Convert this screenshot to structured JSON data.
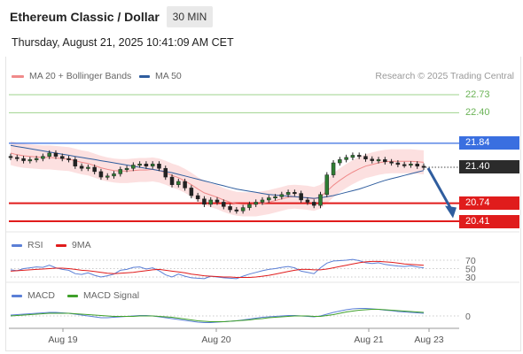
{
  "header": {
    "title": "Ethereum Classic / Dollar",
    "timeframe": "30 MIN",
    "timestamp": "Thursday, August 21, 2025 10:41:09 AM CET"
  },
  "legends": {
    "main": [
      {
        "label": "MA 20 + Bollinger Bands",
        "color": "#f08a8a"
      },
      {
        "label": "MA 50",
        "color": "#2f5d9e"
      }
    ],
    "rsi": [
      {
        "label": "RSI",
        "color": "#5b7fd6"
      },
      {
        "label": "9MA",
        "color": "#e01c1c"
      }
    ],
    "macd": [
      {
        "label": "MACD",
        "color": "#5b7fd6"
      },
      {
        "label": "MACD Signal",
        "color": "#3fa02a"
      }
    ]
  },
  "credit": "Research © 2025 Trading Central",
  "price_tags": [
    {
      "value": "22.73",
      "kind": "target",
      "color": "#7fc36b"
    },
    {
      "value": "22.40",
      "kind": "target",
      "color": "#7fc36b"
    },
    {
      "value": "21.84",
      "kind": "pivot",
      "color": "#3a6fe0"
    },
    {
      "value": "21.40",
      "kind": "last",
      "color": "#2b2b2b"
    },
    {
      "value": "20.74",
      "kind": "support",
      "color": "#e01c1c"
    },
    {
      "value": "20.41",
      "kind": "support",
      "color": "#e01c1c"
    }
  ],
  "rsi_levels": [
    "70",
    "50",
    "30"
  ],
  "macd_levels": [
    "0"
  ],
  "x_axis_labels": [
    "Aug 19",
    "Aug 20",
    "Aug 21",
    "Aug 23"
  ],
  "chart_data": {
    "type": "line",
    "title": "Ethereum Classic / Dollar",
    "interval": "30 MIN",
    "price_ylim": [
      20.3,
      22.9
    ],
    "x_ticks": [
      "Aug 19",
      "Aug 20",
      "Aug 21",
      "Aug 23"
    ],
    "horizontal_levels": {
      "resistance": [
        22.73,
        22.4
      ],
      "pivot": 21.84,
      "last_price": 21.4,
      "support": [
        20.74,
        20.41
      ]
    },
    "projection": {
      "direction": "down",
      "from": 21.4,
      "to": 20.5
    },
    "series": [
      {
        "name": "Price",
        "values": [
          21.58,
          21.56,
          21.52,
          21.54,
          21.56,
          21.6,
          21.66,
          21.6,
          21.56,
          21.54,
          21.42,
          21.38,
          21.4,
          21.32,
          21.22,
          21.24,
          21.28,
          21.36,
          21.38,
          21.44,
          21.46,
          21.42,
          21.46,
          21.38,
          21.22,
          21.08,
          21.14,
          21.02,
          20.88,
          20.82,
          20.72,
          20.8,
          20.76,
          20.68,
          20.62,
          20.6,
          20.66,
          20.72,
          20.76,
          20.8,
          20.84,
          20.86,
          20.9,
          20.94,
          20.92,
          20.8,
          20.76,
          20.7,
          20.9,
          21.26,
          21.48,
          21.54,
          21.58,
          21.62,
          21.6,
          21.55,
          21.52,
          21.54,
          21.5,
          21.48,
          21.45,
          21.44,
          21.46,
          21.42,
          21.4
        ]
      },
      {
        "name": "MA 20",
        "values": [
          21.66,
          21.63,
          21.61,
          21.6,
          21.59,
          21.58,
          21.58,
          21.57,
          21.56,
          21.55,
          21.52,
          21.49,
          21.47,
          21.43,
          21.39,
          21.36,
          21.34,
          21.33,
          21.33,
          21.34,
          21.35,
          21.35,
          21.36,
          21.34,
          21.3,
          21.25,
          21.21,
          21.15,
          21.08,
          21.0,
          20.93,
          20.89,
          20.85,
          20.8,
          20.76,
          20.73,
          20.72,
          20.72,
          20.72,
          20.74,
          20.76,
          20.79,
          20.82,
          20.85,
          20.86,
          20.85,
          20.84,
          20.82,
          20.86,
          20.96,
          21.07,
          21.16,
          21.24,
          21.31,
          21.37,
          21.42,
          21.45,
          21.48,
          21.5,
          21.51,
          21.51,
          21.51,
          21.51,
          21.5,
          21.49
        ]
      },
      {
        "name": "MA 50",
        "values": [
          21.8,
          21.78,
          21.76,
          21.74,
          21.72,
          21.7,
          21.68,
          21.66,
          21.64,
          21.62,
          21.6,
          21.58,
          21.56,
          21.54,
          21.52,
          21.5,
          21.48,
          21.46,
          21.44,
          21.42,
          21.4,
          21.38,
          21.36,
          21.34,
          21.32,
          21.3,
          21.27,
          21.24,
          21.21,
          21.18,
          21.15,
          21.12,
          21.09,
          21.06,
          21.03,
          21.0,
          20.98,
          20.96,
          20.94,
          20.92,
          20.9,
          20.89,
          20.88,
          20.87,
          20.86,
          20.85,
          20.84,
          20.83,
          20.84,
          20.86,
          20.88,
          20.91,
          20.94,
          20.97,
          21.0,
          21.04,
          21.08,
          21.12,
          21.16,
          21.19,
          21.22,
          21.25,
          21.28,
          21.31,
          21.34
        ]
      },
      {
        "name": "RSI",
        "values": [
          47,
          45,
          50,
          52,
          54,
          53,
          58,
          52,
          48,
          46,
          38,
          36,
          40,
          34,
          30,
          33,
          37,
          46,
          48,
          53,
          54,
          49,
          52,
          45,
          35,
          30,
          37,
          32,
          28,
          27,
          26,
          32,
          30,
          28,
          27,
          26,
          32,
          37,
          41,
          45,
          48,
          50,
          53,
          55,
          52,
          44,
          41,
          38,
          52,
          63,
          68,
          69,
          70,
          72,
          69,
          64,
          62,
          64,
          60,
          58,
          56,
          55,
          57,
          54,
          52
        ]
      },
      {
        "name": "9MA",
        "values": [
          44,
          45,
          46,
          47,
          48,
          49,
          50,
          51,
          51,
          50,
          48,
          46,
          45,
          43,
          41,
          39,
          38,
          39,
          40,
          41,
          43,
          45,
          47,
          48,
          46,
          44,
          42,
          40,
          37,
          35,
          33,
          32,
          31,
          30,
          30,
          29,
          29,
          29,
          30,
          32,
          34,
          37,
          40,
          43,
          46,
          48,
          48,
          47,
          47,
          49,
          52,
          55,
          58,
          61,
          64,
          66,
          67,
          67,
          66,
          65,
          63,
          61,
          60,
          59,
          58
        ]
      },
      {
        "name": "MACD",
        "values": [
          0.02,
          0.03,
          0.04,
          0.05,
          0.06,
          0.07,
          0.08,
          0.08,
          0.07,
          0.06,
          0.04,
          0.02,
          0.0,
          -0.02,
          -0.04,
          -0.04,
          -0.03,
          -0.02,
          -0.01,
          0.0,
          0.01,
          0.01,
          0.0,
          -0.02,
          -0.04,
          -0.06,
          -0.08,
          -0.1,
          -0.12,
          -0.14,
          -0.15,
          -0.15,
          -0.14,
          -0.13,
          -0.12,
          -0.11,
          -0.09,
          -0.07,
          -0.05,
          -0.03,
          -0.02,
          -0.01,
          0.0,
          0.01,
          0.01,
          0.0,
          -0.01,
          -0.02,
          0.0,
          0.04,
          0.08,
          0.11,
          0.14,
          0.16,
          0.17,
          0.17,
          0.16,
          0.15,
          0.13,
          0.12,
          0.1,
          0.09,
          0.08,
          0.07,
          0.06
        ]
      },
      {
        "name": "MACD Signal",
        "values": [
          0.0,
          0.01,
          0.02,
          0.03,
          0.04,
          0.05,
          0.06,
          0.06,
          0.06,
          0.06,
          0.05,
          0.04,
          0.03,
          0.02,
          0.01,
          0.0,
          -0.01,
          -0.01,
          -0.01,
          -0.01,
          0.0,
          0.0,
          0.0,
          -0.01,
          -0.02,
          -0.03,
          -0.05,
          -0.07,
          -0.09,
          -0.11,
          -0.12,
          -0.13,
          -0.13,
          -0.13,
          -0.12,
          -0.11,
          -0.1,
          -0.09,
          -0.07,
          -0.06,
          -0.04,
          -0.03,
          -0.02,
          -0.01,
          0.0,
          0.0,
          0.0,
          -0.01,
          -0.01,
          0.01,
          0.03,
          0.06,
          0.09,
          0.11,
          0.13,
          0.14,
          0.15,
          0.15,
          0.14,
          0.13,
          0.12,
          0.11,
          0.1,
          0.09,
          0.08
        ]
      }
    ]
  }
}
